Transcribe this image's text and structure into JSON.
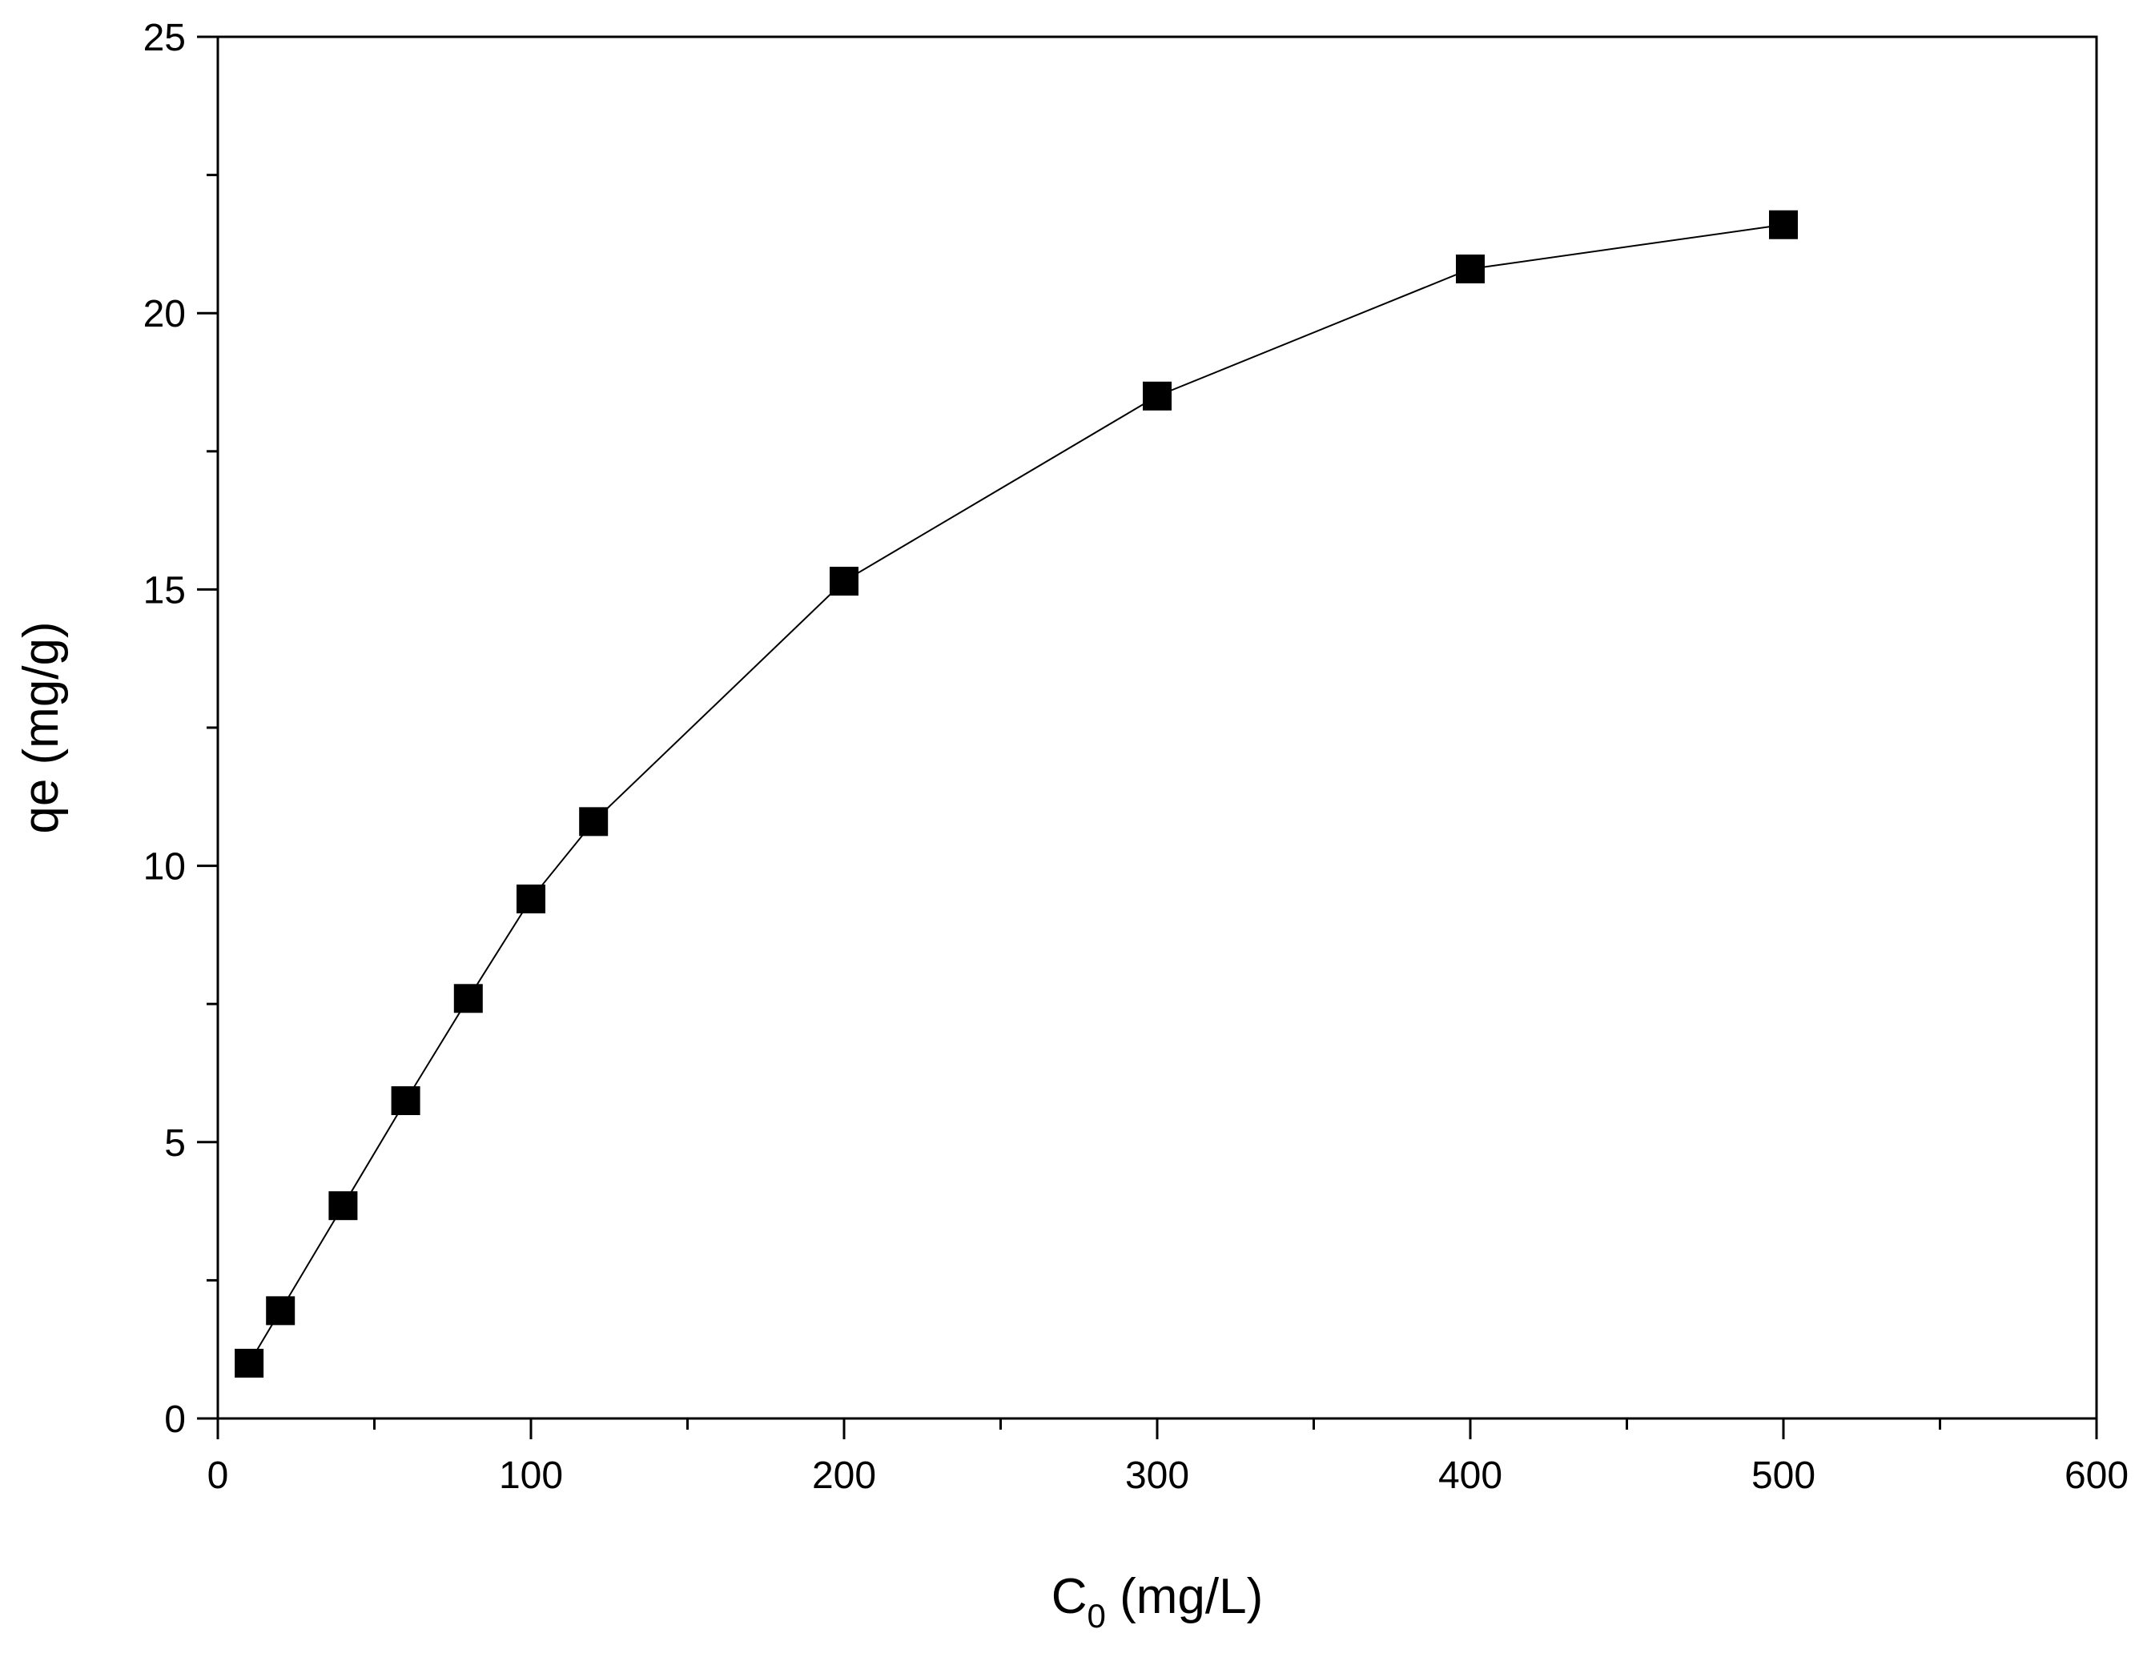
{
  "chart_data": {
    "type": "scatter",
    "connected": true,
    "marker": "square",
    "title": "",
    "xlabel": {
      "main": "C",
      "sub": "0",
      "rest": " (mg/L)"
    },
    "ylabel": "qe (mg/g)",
    "xlim": [
      0,
      600
    ],
    "ylim": [
      0,
      25
    ],
    "x_major_ticks": [
      0,
      100,
      200,
      300,
      400,
      500,
      600
    ],
    "x_minor_ticks": [
      50,
      150,
      250,
      350,
      450,
      550
    ],
    "y_major_ticks": [
      0,
      5,
      10,
      15,
      20,
      25
    ],
    "y_minor_ticks": [
      2.5,
      7.5,
      12.5,
      17.5,
      22.5
    ],
    "grid": false,
    "colors": {
      "series": "#000000",
      "axes": "#000000",
      "background": "#ffffff"
    },
    "series": [
      {
        "x": [
          10,
          20,
          40,
          60,
          80,
          100,
          120,
          200,
          300,
          400,
          500
        ],
        "y": [
          1.0,
          1.95,
          3.85,
          5.75,
          7.6,
          9.4,
          10.8,
          15.15,
          18.5,
          20.8,
          21.6
        ]
      }
    ]
  }
}
